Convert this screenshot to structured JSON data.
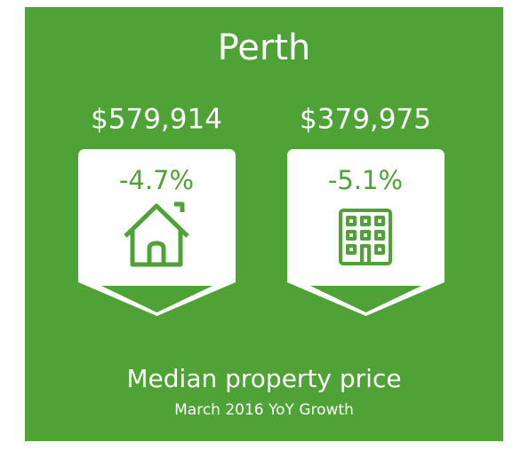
{
  "title": "Perth",
  "cards": [
    {
      "price": "$579,914",
      "change": "-4.7%",
      "icon": "house"
    },
    {
      "price": "$379,975",
      "change": "-5.1%",
      "icon": "apartment"
    }
  ],
  "footer": {
    "title": "Median property price",
    "subtitle": "March 2016 YoY Growth"
  }
}
